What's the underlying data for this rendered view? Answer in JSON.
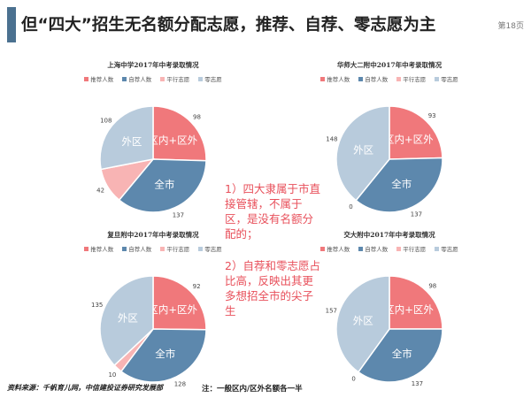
{
  "slide": {
    "title": "但“四大”招生无名额分配志愿，推荐、自荐、零志愿为主",
    "page_number": "第18页"
  },
  "legend": {
    "items": [
      "推荐人数",
      "自荐人数",
      "平行志愿",
      "零志愿"
    ],
    "colors": [
      "#f0787b",
      "#5d88ad",
      "#f8b4b4",
      "#b8cbdc"
    ]
  },
  "chart_data": [
    {
      "type": "pie",
      "title": "上海中学2017年中考录取情况",
      "categories": [
        "推荐人数",
        "自荐人数",
        "平行志愿",
        "零志愿"
      ],
      "values": [
        98,
        137,
        42,
        108
      ],
      "slice_labels": [
        "区内+区外",
        "全市",
        "",
        "外区"
      ]
    },
    {
      "type": "pie",
      "title": "华师大二附中2017年中考录取情况",
      "categories": [
        "推荐人数",
        "自荐人数",
        "平行志愿",
        "零志愿"
      ],
      "values": [
        93,
        137,
        0,
        148
      ],
      "slice_labels": [
        "区内+区外",
        "全市",
        "",
        "外区"
      ]
    },
    {
      "type": "pie",
      "title": "复旦附中2017年中考录取情况",
      "categories": [
        "推荐人数",
        "自荐人数",
        "平行志愿",
        "零志愿"
      ],
      "values": [
        92,
        128,
        10,
        135
      ],
      "slice_labels": [
        "区内+区外",
        "全市",
        "",
        "外区"
      ]
    },
    {
      "type": "pie",
      "title": "交大附中2017年中考录取情况",
      "categories": [
        "推荐人数",
        "自荐人数",
        "平行志愿",
        "零志愿"
      ],
      "values": [
        98,
        137,
        0,
        157
      ],
      "slice_labels": [
        "区内+区外",
        "全市",
        "",
        "外区"
      ]
    }
  ],
  "callouts": [
    "1）四大隶属于市直接管辖，不属于区，是没有名额分配的；",
    "2）自荐和零志愿占比高，反映出其更多想招全市的尖子生"
  ],
  "footer": {
    "source": "资料来源：千帆育儿网，中信建投证券研究发展部",
    "note": "注：一般区内/区外名额各一半"
  }
}
